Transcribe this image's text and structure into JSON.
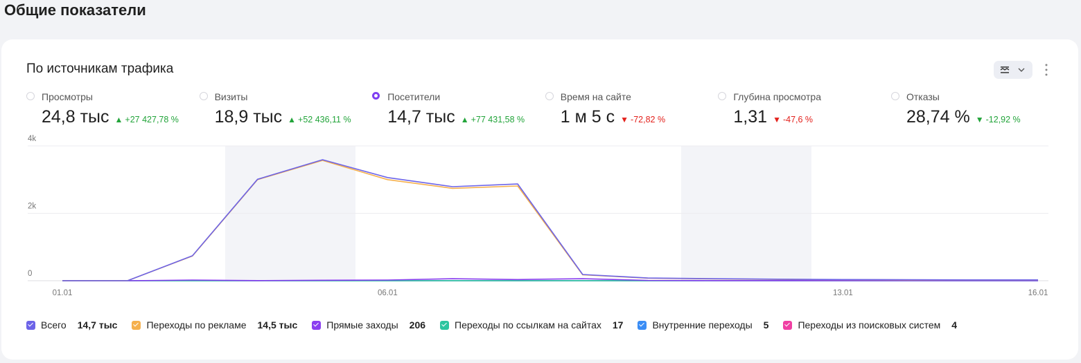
{
  "page_title": "Общие показатели",
  "card_title": "По источникам трафика",
  "metrics": [
    {
      "label": "Просмотры",
      "value": "24,8 тыс",
      "change": "+27 427,78 %",
      "trend": "up",
      "color": "#22a43a",
      "selected": false
    },
    {
      "label": "Визиты",
      "value": "18,9 тыс",
      "change": "+52 436,11 %",
      "trend": "up",
      "color": "#22a43a",
      "selected": false
    },
    {
      "label": "Посетители",
      "value": "14,7 тыс",
      "change": "+77 431,58 %",
      "trend": "up",
      "color": "#22a43a",
      "selected": true
    },
    {
      "label": "Время на сайте",
      "value": "1 м 5 с",
      "change": "-72,82 %",
      "trend": "down",
      "color": "#e3211c",
      "selected": false
    },
    {
      "label": "Глубина просмотра",
      "value": "1,31",
      "change": "-47,6 %",
      "trend": "down",
      "color": "#e3211c",
      "selected": false
    },
    {
      "label": "Отказы",
      "value": "28,74 %",
      "change": "-12,92 %",
      "trend": "down",
      "color": "#22a43a",
      "selected": false
    }
  ],
  "chart_data": {
    "type": "line",
    "x": [
      "01.01",
      null,
      null,
      null,
      null,
      "06.01",
      null,
      null,
      null,
      null,
      null,
      null,
      "13.01",
      null,
      null,
      "16.01"
    ],
    "ylim": [
      0,
      4000
    ],
    "yticks": [
      0,
      {
        "value": 2000,
        "label": "2k"
      },
      {
        "value": 4000,
        "label": "4k"
      }
    ],
    "grid": true,
    "series": [
      {
        "name": "Всего",
        "total": "14,7 тыс",
        "color": "#6c63e8",
        "values": [
          0,
          0,
          740,
          3010,
          3590,
          3060,
          2790,
          2870,
          185,
          80,
          60,
          45,
          35,
          30,
          25,
          25
        ]
      },
      {
        "name": "Переходы по рекламе",
        "total": "14,5 тыс",
        "color": "#f5b04d",
        "values": [
          0,
          0,
          735,
          3000,
          3570,
          3000,
          2740,
          2810,
          175,
          75,
          55,
          40,
          30,
          25,
          20,
          20
        ]
      },
      {
        "name": "Прямые заходы",
        "total": "206",
        "color": "#8b3ff0",
        "values": [
          0,
          0,
          20,
          5,
          15,
          20,
          60,
          35,
          60,
          10,
          5,
          5,
          5,
          5,
          5,
          5
        ]
      },
      {
        "name": "Переходы по ссылкам на сайтах",
        "total": "17",
        "color": "#2cc5a0",
        "values": [
          0,
          0,
          1,
          1,
          2,
          1,
          2,
          2,
          2,
          1,
          1,
          1,
          1,
          1,
          1,
          1
        ]
      },
      {
        "name": "Внутренние переходы",
        "total": "5",
        "color": "#3a8df5",
        "values": [
          0,
          0,
          0,
          1,
          1,
          0,
          1,
          1,
          1,
          0,
          0,
          0,
          0,
          0,
          0,
          0
        ]
      },
      {
        "name": "Переходы из поисковых систем",
        "total": "4",
        "color": "#f03fa3",
        "values": [
          0,
          0,
          0,
          0,
          1,
          0,
          1,
          0,
          1,
          0,
          0,
          1,
          0,
          0,
          0,
          0
        ]
      }
    ]
  }
}
